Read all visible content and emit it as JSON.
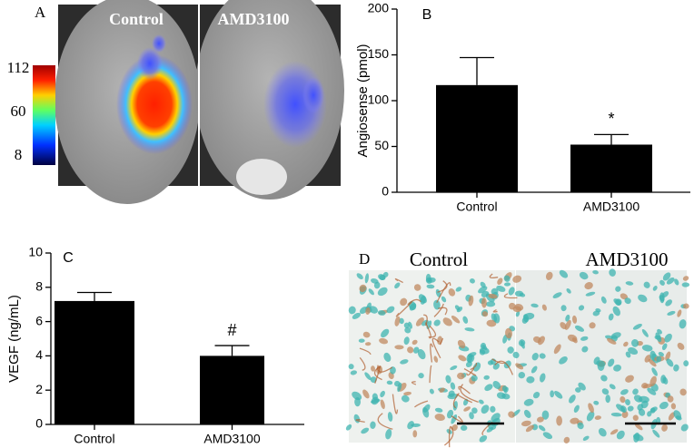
{
  "chart_data": [
    {
      "type": "bar",
      "panel": "B",
      "y_label": "Angiosense (pmol)",
      "categories": [
        "Control",
        "AMD3100"
      ],
      "values": [
        117,
        52
      ],
      "errors": [
        30,
        11
      ],
      "color": "#000000",
      "ylim": [
        0,
        200
      ],
      "yticks": [
        0,
        50,
        100,
        150,
        200
      ],
      "annotation": "*"
    },
    {
      "type": "bar",
      "panel": "C",
      "y_label": "VEGF (ng/mL)",
      "categories": [
        "Control",
        "AMD3100"
      ],
      "values": [
        7.2,
        4.0
      ],
      "errors": [
        0.5,
        0.6
      ],
      "color": "#000000",
      "ylim": [
        0,
        10
      ],
      "yticks": [
        0,
        2,
        4,
        6,
        8,
        10
      ],
      "annotation": "#"
    }
  ],
  "panel_a": {
    "letter": "A",
    "left_label": "Control",
    "right_label": "AMD3100",
    "colorbar_ticks": [
      112,
      60,
      8
    ]
  },
  "panel_d": {
    "letter": "D",
    "left_label": "Control",
    "right_label": "AMD3100"
  }
}
